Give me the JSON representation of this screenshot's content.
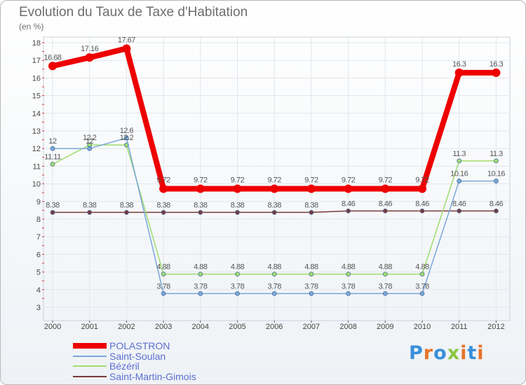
{
  "header": {
    "title": "Evolution du Taux de Taxe d'Habitation",
    "subtitle": "(en %)"
  },
  "chart_data": {
    "type": "line",
    "title": "Evolution du Taux de Taxe d'Habitation",
    "ylabel": "(en %)",
    "xlabel": "",
    "ylim": [
      3,
      18
    ],
    "y_ticks": [
      "3",
      "4",
      "5",
      "6",
      "7",
      "8",
      "9",
      "10",
      "11",
      "12",
      "13",
      "14",
      "15",
      "16",
      "17",
      "18"
    ],
    "categories": [
      "2000",
      "2001",
      "2002",
      "2003",
      "2004",
      "2005",
      "2006",
      "2007",
      "2008",
      "2009",
      "2010",
      "2011",
      "2012"
    ],
    "grid": true,
    "series": [
      {
        "name": "Saint-Martin-Gimois",
        "color": "#7a3a3a",
        "values": [
          8.38,
          8.38,
          8.38,
          8.38,
          8.38,
          8.38,
          8.38,
          8.38,
          8.46,
          8.46,
          8.46,
          8.46,
          8.46
        ],
        "labels": [
          "8.38",
          "8.38",
          "8.38",
          "8.38",
          "8.38",
          "8.38",
          "8.38",
          "8.38",
          "8.46",
          "8.46",
          "8.46",
          "8.46",
          "8.46"
        ]
      },
      {
        "name": "Bézéril",
        "color": "#9fdc6e",
        "values": [
          11.11,
          12.2,
          12.2,
          4.88,
          4.88,
          4.88,
          4.88,
          4.88,
          4.88,
          4.88,
          4.88,
          11.3,
          11.3
        ],
        "labels": [
          "11.11",
          "12.2",
          "12.2",
          "4.88",
          "4.88",
          "4.88",
          "4.88",
          "4.88",
          "4.88",
          "4.88",
          "4.88",
          "11.3",
          "11.3"
        ]
      },
      {
        "name": "Saint-Soulan",
        "color": "#7aa7d8",
        "values": [
          12,
          12,
          12.6,
          3.78,
          3.78,
          3.78,
          3.78,
          3.78,
          3.78,
          3.78,
          3.78,
          10.16,
          10.16
        ],
        "labels": [
          "12",
          "12",
          "12.6",
          "3.78",
          "3.78",
          "3.78",
          "3.78",
          "3.78",
          "3.78",
          "3.78",
          "3.78",
          "10.16",
          "10.16"
        ]
      },
      {
        "name": "POLASTRON",
        "color": "#ee0000",
        "values": [
          16.68,
          17.16,
          17.67,
          9.72,
          9.72,
          9.72,
          9.72,
          9.72,
          9.72,
          9.72,
          9.72,
          16.3,
          16.3
        ],
        "labels": [
          "16.68",
          "17.16",
          "17.67",
          "9.72",
          "9.72",
          "9.72",
          "9.72",
          "9.72",
          "9.72",
          "9.72",
          "9.72",
          "16.3",
          "16.3"
        ]
      }
    ],
    "legend": {
      "position": "bottom-left",
      "order": [
        "POLASTRON",
        "Saint-Soulan",
        "Bézéril",
        "Saint-Martin-Gimois"
      ]
    }
  },
  "logo": {
    "text": "Proxiti",
    "colors": [
      "#3a8fd8",
      "#e8742a",
      "#3a8fd8",
      "#8cc63f",
      "#e8742a",
      "#3a8fd8",
      "#e8742a"
    ]
  }
}
